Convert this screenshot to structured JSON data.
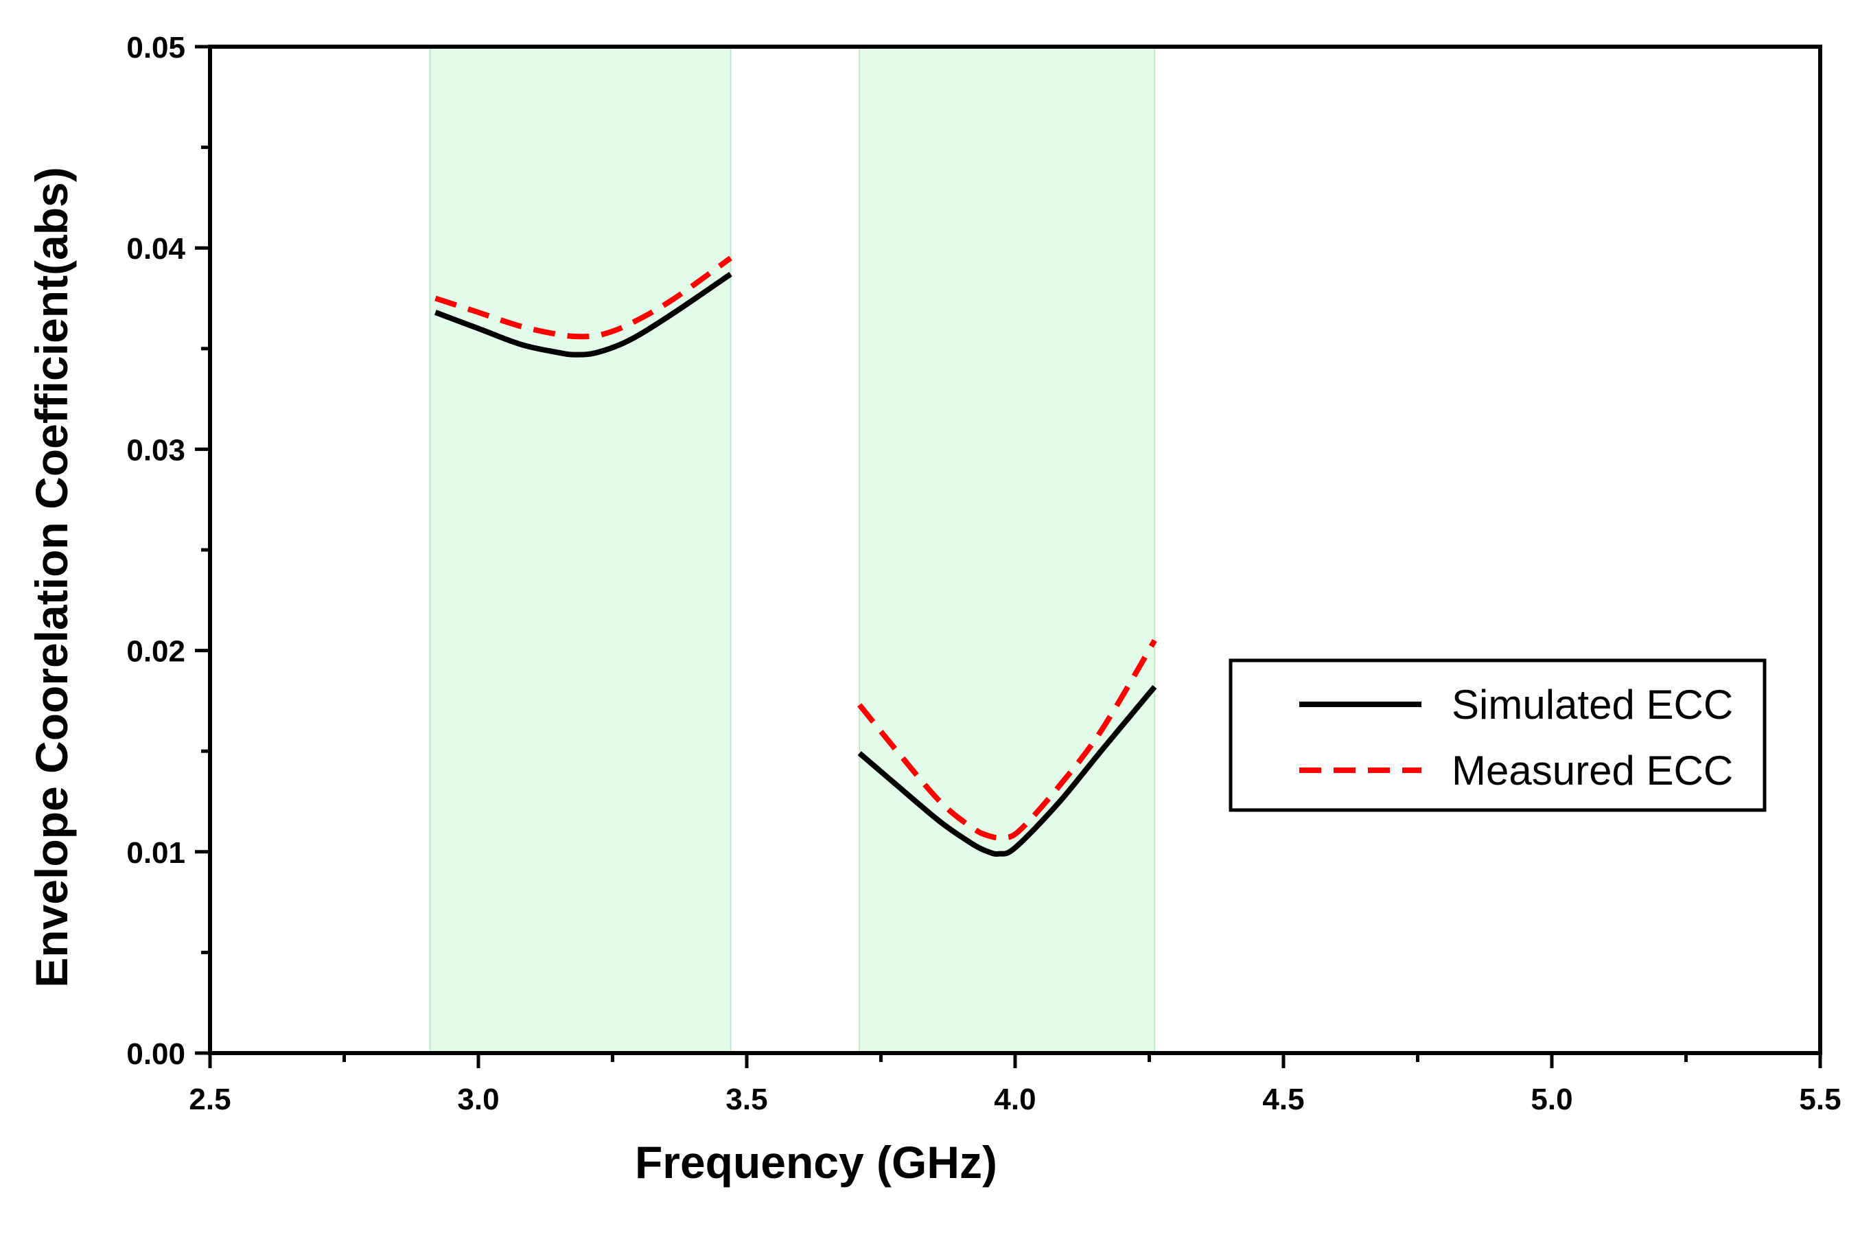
{
  "chart_data": {
    "type": "line",
    "title": "",
    "xlabel": "Frequency (GHz)",
    "ylabel": "Envelope Coorelation Coefficient(abs)",
    "xlim": [
      2.5,
      5.5
    ],
    "ylim": [
      0.0,
      0.05
    ],
    "grid": false,
    "x_ticks": [
      2.5,
      3.0,
      3.5,
      4.0,
      4.5,
      5.0,
      5.5
    ],
    "x_tick_labels": [
      "2.5",
      "3.0",
      "3.5",
      "4.0",
      "4.5",
      "5.0",
      "5.5"
    ],
    "y_ticks": [
      0.0,
      0.01,
      0.02,
      0.03,
      0.04,
      0.05
    ],
    "y_tick_labels": [
      "0.00",
      "0.01",
      "0.02",
      "0.03",
      "0.04",
      "0.05"
    ],
    "shaded_bands": [
      {
        "x_start": 2.91,
        "x_end": 3.47,
        "color": "#e3fbe9"
      },
      {
        "x_start": 3.71,
        "x_end": 4.26,
        "color": "#e3fbe9"
      }
    ],
    "legend_position": "center-right",
    "series": [
      {
        "name": "Simulated ECC",
        "color": "#000000",
        "style": "solid",
        "segments": [
          {
            "x": [
              2.92,
              3.0,
              3.08,
              3.15,
              3.18,
              3.22,
              3.28,
              3.36,
              3.47
            ],
            "y": [
              0.0368,
              0.036,
              0.0352,
              0.0348,
              0.0347,
              0.0348,
              0.0354,
              0.0367,
              0.0387
            ]
          },
          {
            "x": [
              3.71,
              3.78,
              3.86,
              3.92,
              3.95,
              3.97,
              4.0,
              4.08,
              4.16,
              4.26
            ],
            "y": [
              0.0149,
              0.0133,
              0.0115,
              0.0104,
              0.01,
              0.0099,
              0.0102,
              0.0124,
              0.015,
              0.0182
            ]
          }
        ]
      },
      {
        "name": "Measured ECC",
        "color": "#ff0000",
        "style": "dashed",
        "segments": [
          {
            "x": [
              2.92,
              3.0,
              3.08,
              3.15,
              3.19,
              3.23,
              3.28,
              3.36,
              3.47
            ],
            "y": [
              0.0375,
              0.0368,
              0.0361,
              0.0357,
              0.0356,
              0.0357,
              0.0362,
              0.0374,
              0.0395
            ]
          },
          {
            "x": [
              3.71,
              3.78,
              3.86,
              3.92,
              3.95,
              3.98,
              4.01,
              4.08,
              4.16,
              4.26
            ],
            "y": [
              0.0173,
              0.015,
              0.0125,
              0.0112,
              0.0108,
              0.0107,
              0.0111,
              0.0132,
              0.016,
              0.0205
            ]
          }
        ]
      }
    ]
  }
}
